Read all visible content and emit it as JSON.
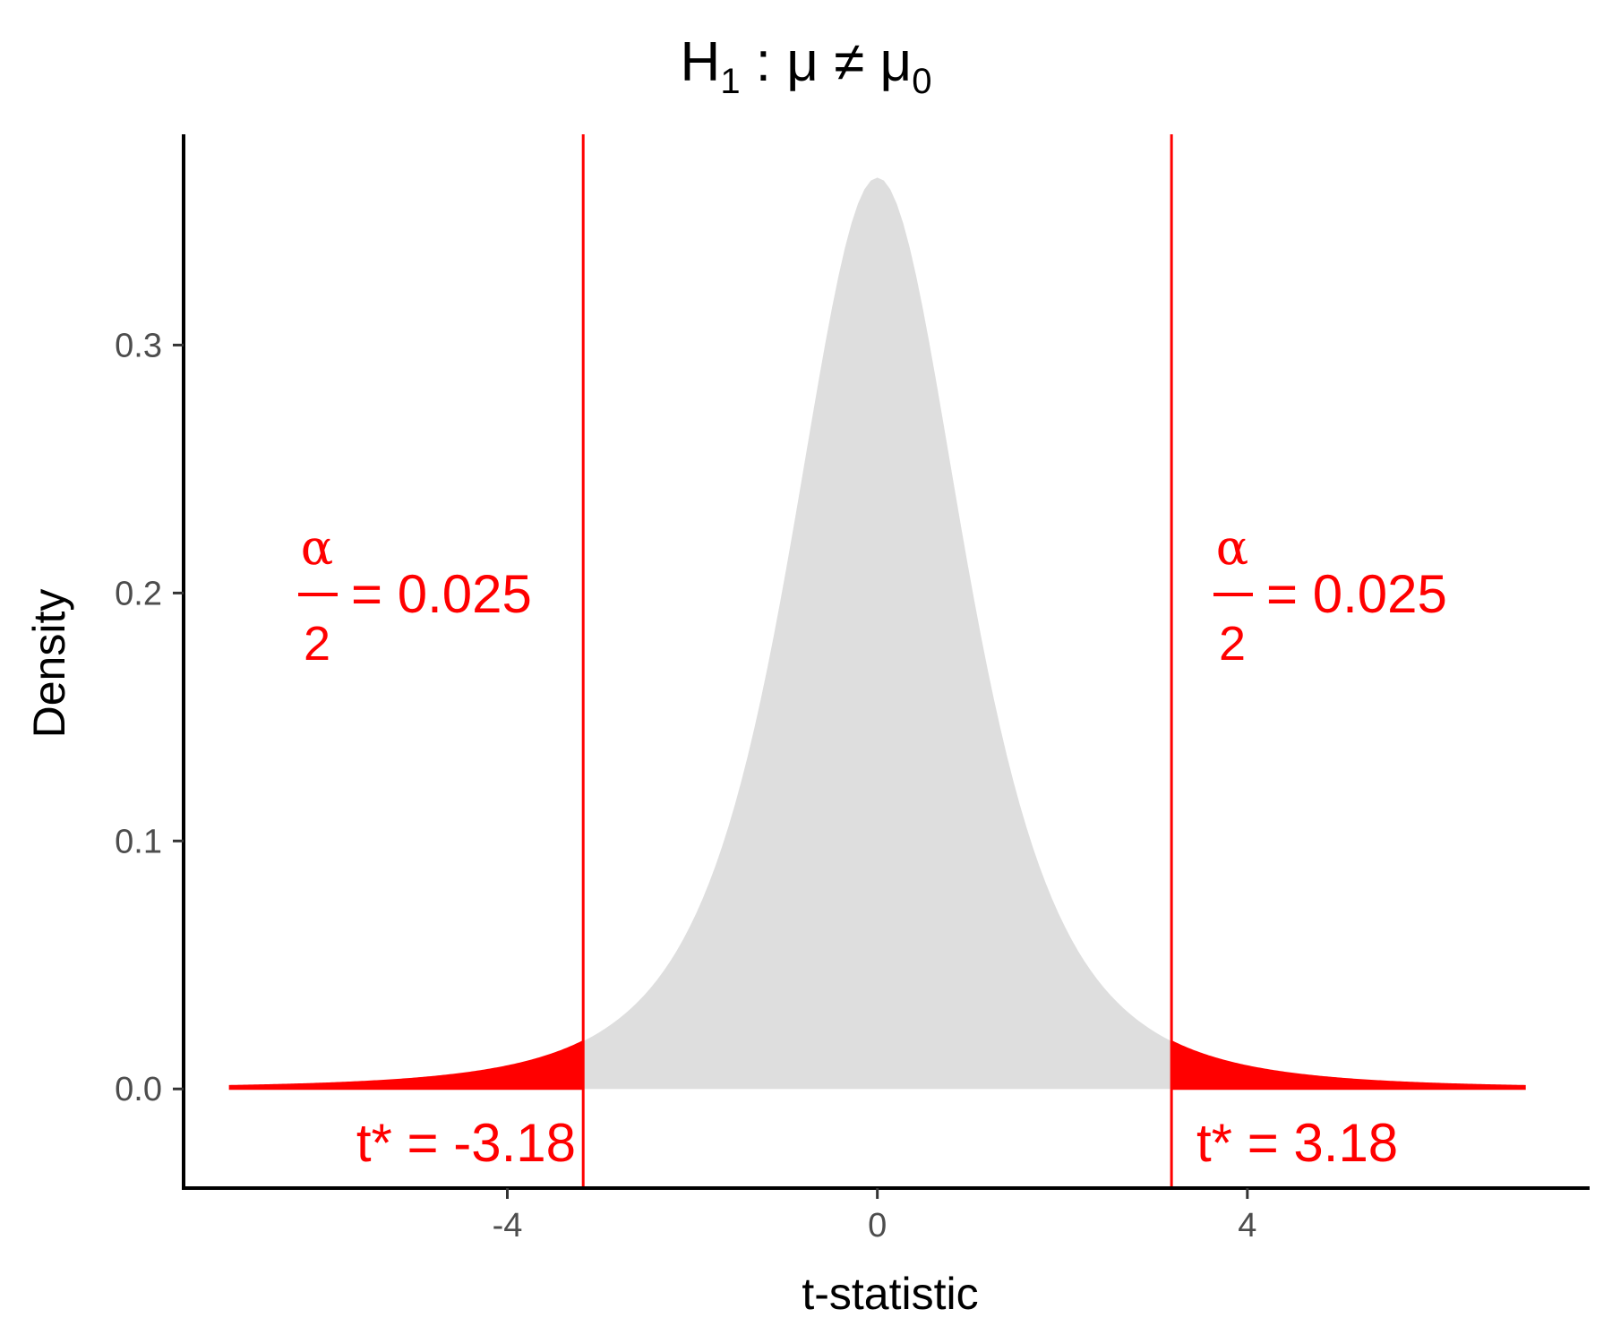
{
  "chart_data": {
    "type": "area",
    "title": {
      "main": "H",
      "sub": "1",
      "rest": " : μ ≠ μ",
      "sub2": "0"
    },
    "xlabel": "t-statistic",
    "ylabel": "Density",
    "xlim": [
      -7.5,
      7.7
    ],
    "ylim": [
      -0.04,
      0.385
    ],
    "x_ticks": [
      {
        "value": -4,
        "label": "-4"
      },
      {
        "value": 0,
        "label": "0"
      },
      {
        "value": 4,
        "label": "4"
      }
    ],
    "y_ticks": [
      {
        "value": 0.0,
        "label": "0.0"
      },
      {
        "value": 0.1,
        "label": "0.1"
      },
      {
        "value": 0.2,
        "label": "0.2"
      },
      {
        "value": 0.3,
        "label": "0.3"
      }
    ],
    "distribution": {
      "name": "Student t",
      "df": 3,
      "x_range": [
        -7,
        7
      ],
      "peak_density": 0.368
    },
    "critical_value": 3.18,
    "rejection_regions": [
      {
        "from": -7,
        "to": -3.18
      },
      {
        "from": 3.18,
        "to": 7
      }
    ],
    "annotations": {
      "alpha_numerator": "α",
      "alpha_denominator": "2",
      "alpha_value": "= 0.025",
      "t_left": "t* = -3.18",
      "t_right": "t* = 3.18"
    },
    "colors": {
      "body_fill": "#dedede",
      "rejection_fill": "#ff0000",
      "critical_line": "#ff0000",
      "axis": "#000000"
    },
    "grid": false,
    "legend": "none"
  }
}
